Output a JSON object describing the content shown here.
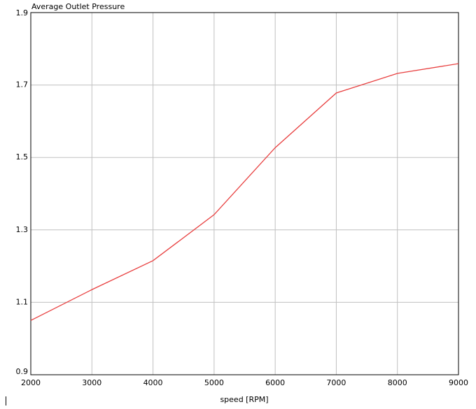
{
  "chart_data": {
    "type": "line",
    "title": "Average Outlet Pressure",
    "x_label": "speed [RPM]",
    "x": [
      2000,
      3000,
      4000,
      5000,
      6000,
      7000,
      8000,
      9000
    ],
    "series": [
      {
        "color": "#e84040",
        "values": [
          1.05,
          1.135,
          1.215,
          1.342,
          1.527,
          1.678,
          1.732,
          1.759
        ]
      }
    ],
    "xlim": [
      2000,
      9000
    ],
    "xticks": [
      2000,
      3000,
      4000,
      5000,
      6000,
      7000,
      8000,
      9000
    ],
    "ylim": [
      0.9,
      1.9
    ],
    "yticks": [
      0.9,
      1.1,
      1.3,
      1.5,
      1.7,
      1.9
    ],
    "grid": true
  }
}
